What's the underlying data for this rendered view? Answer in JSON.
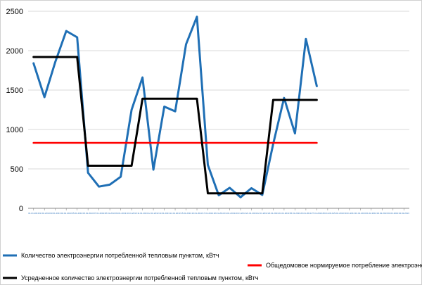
{
  "chart_data": {
    "type": "line",
    "title": "",
    "xlabel": "",
    "ylabel": "",
    "ylim": [
      0,
      2500
    ],
    "yticks": [
      0,
      500,
      1000,
      1500,
      2000,
      2500
    ],
    "grid": "horizontal",
    "legend_position": "bottom",
    "categories": [
      "1",
      "2",
      "3",
      "4",
      "5",
      "6",
      "7",
      "8",
      "9",
      "10",
      "11",
      "12",
      "13",
      "14",
      "15",
      "16",
      "17",
      "18",
      "19",
      "20",
      "21",
      "22",
      "23",
      "24",
      "25",
      "26",
      "27",
      "28",
      "29",
      "30",
      "31",
      "32",
      "33",
      "34",
      "35"
    ],
    "series": [
      {
        "name": "Количество электроэнергии потребленной тепловым пунктом, кВтч",
        "color": "#1f6fb5",
        "values": [
          1840,
          1410,
          1860,
          2250,
          2170,
          450,
          275,
          300,
          400,
          1250,
          1660,
          490,
          1290,
          1230,
          2080,
          2430,
          550,
          165,
          260,
          140,
          255,
          170,
          815,
          1400,
          950,
          2150,
          1550,
          null,
          null,
          null,
          null,
          null,
          null,
          null,
          null
        ]
      },
      {
        "name": "Общедомовое нормируемое потребление электроэнергии",
        "color": "#ff0000",
        "values": [
          830,
          830,
          830,
          830,
          830,
          830,
          830,
          830,
          830,
          830,
          830,
          830,
          830,
          830,
          830,
          830,
          830,
          830,
          830,
          830,
          830,
          830,
          830,
          830,
          830,
          830,
          830,
          null,
          null,
          null,
          null,
          null,
          null,
          null,
          null
        ]
      },
      {
        "name": "Усредненное количество электроэнергии потребленной тепловым пунктом, кВтч",
        "color": "#000000",
        "values": [
          1920,
          1920,
          1920,
          1920,
          1920,
          540,
          540,
          540,
          540,
          540,
          1390,
          1390,
          1390,
          1390,
          1390,
          1390,
          190,
          190,
          190,
          190,
          190,
          190,
          1375,
          1375,
          1375,
          1375,
          1375,
          null,
          null,
          null,
          null,
          null,
          null,
          null,
          null
        ]
      }
    ],
    "x_tick_labels": [
      "01.01.2013",
      "02.01.2013",
      "03.01.2013",
      "04.01.2013",
      "05.01.2013",
      "06.01.2013",
      "07.01.2013",
      "08.01.2013",
      "09.01.2013",
      "10.01.2013",
      "11.01.2013",
      "12.01.2013",
      "13.01.2013",
      "14.01.2013",
      "15.01.2013",
      "16.01.2013",
      "17.01.2013",
      "18.01.2013",
      "19.01.2013",
      "20.01.2013",
      "21.01.2013",
      "22.01.2013",
      "23.01.2013",
      "24.01.2013",
      "25.01.2013",
      "26.01.2013",
      "27.01.2013",
      "28.01.2013",
      "29.01.2013",
      "30.01.2013",
      "31.01.2013",
      "01.02.2013",
      "02.02.2013",
      "03.02.2013",
      "04.02.2013"
    ]
  }
}
